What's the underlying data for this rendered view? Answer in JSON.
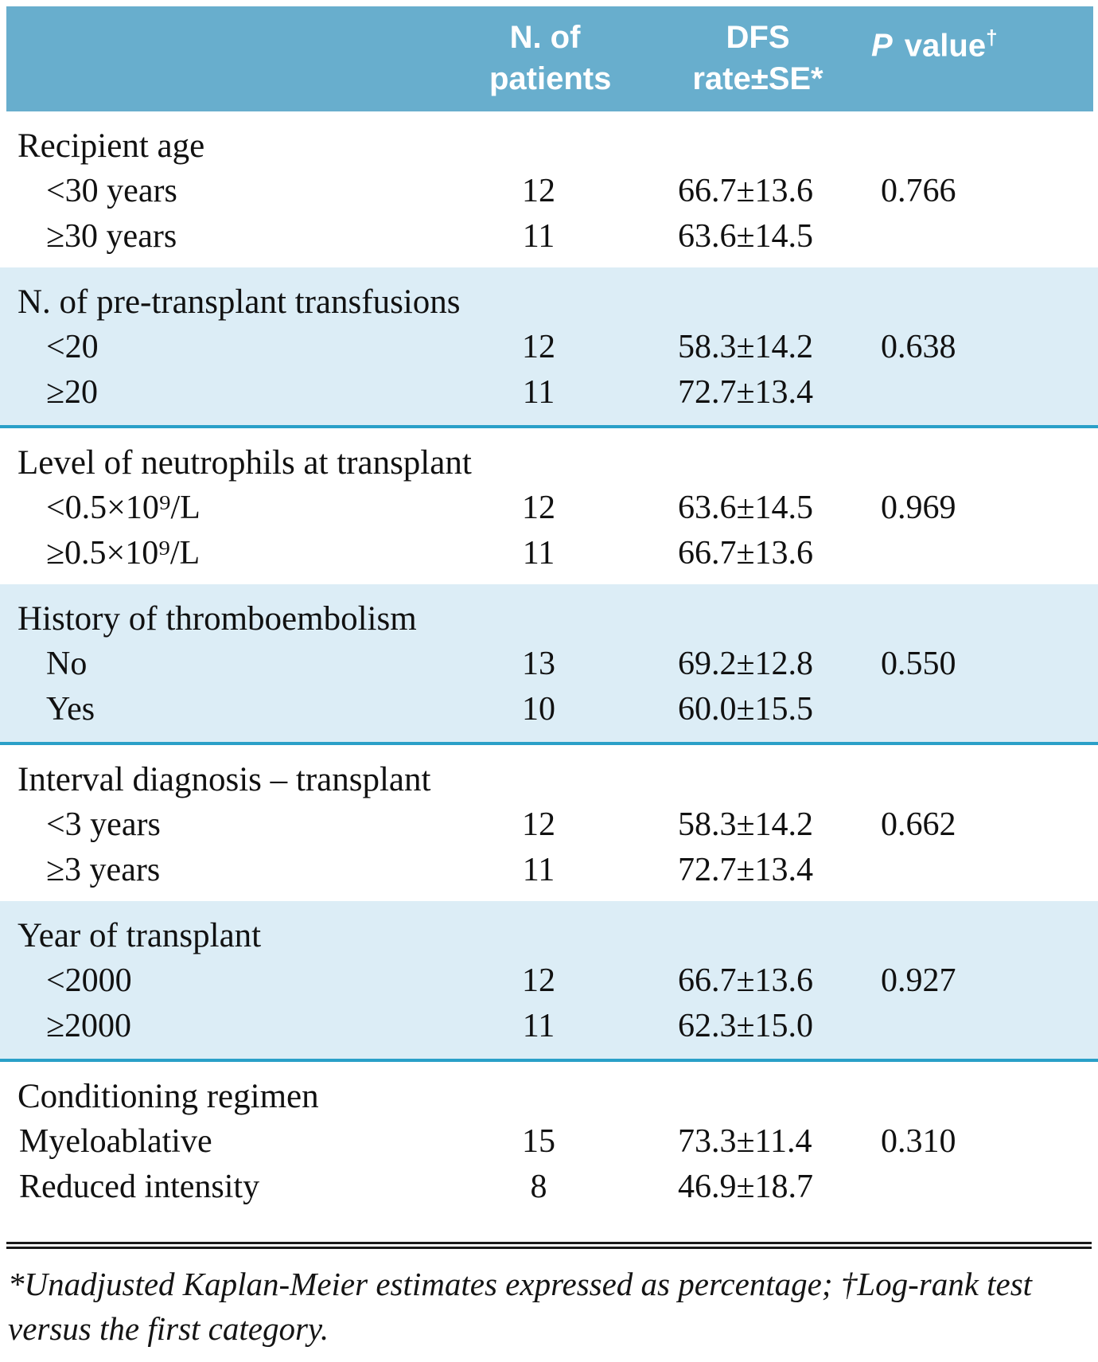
{
  "table": {
    "header": {
      "n_line1": "N. of",
      "n_line2": "patients",
      "dfs_line1": "DFS",
      "dfs_line2": "rate±SE*",
      "p_italic": "P",
      "p_rest": " value",
      "p_sup": "†"
    },
    "colors": {
      "header_bg": "#68aecd",
      "shaded_row_bg": "#dcedf6",
      "section_rule": "#2aa0c8"
    },
    "sections": [
      {
        "category": "Recipient age",
        "shaded": false,
        "indent": true,
        "rows": [
          {
            "label": "<30 years",
            "n": "12",
            "dfs": "66.7±13.6",
            "p": "0.766"
          },
          {
            "label": "≥30 years",
            "n": "11",
            "dfs": "63.6±14.5",
            "p": ""
          }
        ]
      },
      {
        "category": "N. of pre-transplant transfusions",
        "shaded": true,
        "indent": true,
        "rows": [
          {
            "label": "<20",
            "n": "12",
            "dfs": "58.3±14.2",
            "p": "0.638"
          },
          {
            "label": "≥20",
            "n": "11",
            "dfs": "72.7±13.4",
            "p": ""
          }
        ]
      },
      {
        "category": "Level of neutrophils at transplant",
        "shaded": false,
        "indent": true,
        "rows": [
          {
            "label": "<0.5×10⁹/L",
            "n": "12",
            "dfs": "63.6±14.5",
            "p": "0.969"
          },
          {
            "label": "≥0.5×10⁹/L",
            "n": "11",
            "dfs": "66.7±13.6",
            "p": ""
          }
        ]
      },
      {
        "category": "History of thromboembolism",
        "shaded": true,
        "indent": true,
        "rows": [
          {
            "label": "No",
            "n": "13",
            "dfs": "69.2±12.8",
            "p": "0.550"
          },
          {
            "label": "Yes",
            "n": "10",
            "dfs": "60.0±15.5",
            "p": ""
          }
        ]
      },
      {
        "category": "Interval diagnosis – transplant",
        "shaded": false,
        "indent": true,
        "rows": [
          {
            "label": "<3 years",
            "n": "12",
            "dfs": "58.3±14.2",
            "p": "0.662"
          },
          {
            "label": "≥3 years",
            "n": "11",
            "dfs": "72.7±13.4",
            "p": ""
          }
        ]
      },
      {
        "category": "Year of transplant",
        "shaded": true,
        "indent": true,
        "rows": [
          {
            "label": "<2000",
            "n": "12",
            "dfs": "66.7±13.6",
            "p": "0.927"
          },
          {
            "label": "≥2000",
            "n": "11",
            "dfs": "62.3±15.0",
            "p": ""
          }
        ]
      },
      {
        "category": "Conditioning regimen",
        "shaded": false,
        "indent": false,
        "rows": [
          {
            "label": "Myeloablative",
            "n": "15",
            "dfs": "73.3±11.4",
            "p": "0.310"
          },
          {
            "label": "Reduced intensity",
            "n": "8",
            "dfs": "46.9±18.7",
            "p": ""
          }
        ]
      }
    ],
    "footnote": "*Unadjusted Kaplan-Meier estimates expressed as percentage; †Log-rank test versus the first category."
  }
}
